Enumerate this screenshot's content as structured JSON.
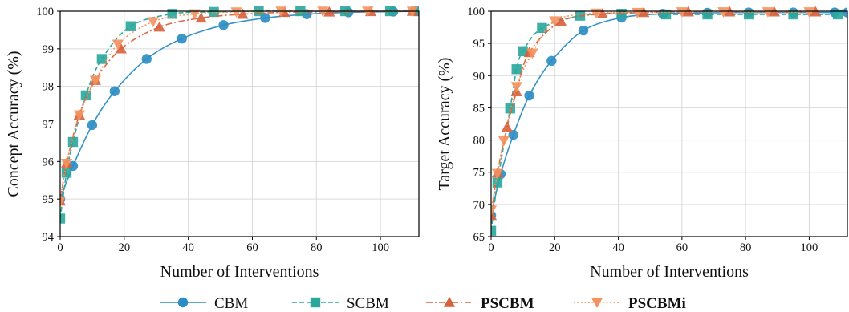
{
  "chart_data": [
    {
      "type": "line",
      "ylabel": "Concept Accuracy (%)",
      "xlabel": "Number of Interventions",
      "xlim": [
        0,
        112
      ],
      "ylim": [
        94,
        100
      ],
      "xticks": [
        "0",
        "20",
        "40",
        "60",
        "80",
        "100"
      ],
      "yticks": [
        "94",
        "95",
        "96",
        "97",
        "98",
        "99",
        "100"
      ],
      "grid": true,
      "series": [
        {
          "name": "CBM",
          "x": [
            0,
            4,
            10,
            17,
            27,
            38,
            51,
            64,
            77,
            90,
            104,
            112
          ],
          "y": [
            95.0,
            95.88,
            96.97,
            97.87,
            98.73,
            99.27,
            99.63,
            99.82,
            99.92,
            99.97,
            99.99,
            100.0
          ]
        },
        {
          "name": "SCBM",
          "x": [
            0,
            2,
            4,
            8,
            13,
            22,
            35,
            48,
            62,
            75,
            89,
            103,
            112
          ],
          "y": [
            94.48,
            95.7,
            96.52,
            97.76,
            98.73,
            99.6,
            99.93,
            99.98,
            100.0,
            100.0,
            100.0,
            100.0,
            100.0
          ]
        },
        {
          "name": "PSCBM",
          "x": [
            0,
            2,
            6,
            11,
            19,
            31,
            44,
            57,
            70,
            84,
            97,
            110
          ],
          "y": [
            94.95,
            95.95,
            97.24,
            98.16,
            99.0,
            99.58,
            99.82,
            99.92,
            99.97,
            99.98,
            99.99,
            100.0
          ]
        },
        {
          "name": "PSCBMi",
          "x": [
            0,
            2,
            6,
            11,
            18,
            29,
            42,
            55,
            69,
            82,
            96,
            110
          ],
          "y": [
            94.95,
            95.95,
            97.24,
            98.16,
            99.12,
            99.72,
            99.93,
            99.98,
            100.0,
            100.0,
            100.0,
            100.0
          ]
        }
      ]
    },
    {
      "type": "line",
      "ylabel": "Target Accuracy (%)",
      "xlabel": "Number of Interventions",
      "xlim": [
        0,
        112
      ],
      "ylim": [
        65,
        100
      ],
      "xticks": [
        "0",
        "20",
        "40",
        "60",
        "80",
        "100"
      ],
      "yticks": [
        "65",
        "70",
        "75",
        "80",
        "85",
        "90",
        "95",
        "100"
      ],
      "grid": true,
      "series": [
        {
          "name": "CBM",
          "x": [
            0,
            3,
            7,
            12,
            19,
            29,
            41,
            54,
            68,
            81,
            95,
            108,
            112
          ],
          "y": [
            68.3,
            74.7,
            80.8,
            86.9,
            92.3,
            97.0,
            99.0,
            99.6,
            99.75,
            99.8,
            99.8,
            99.8,
            99.8
          ]
        },
        {
          "name": "SCBM",
          "x": [
            0,
            2,
            6,
            8,
            10,
            16,
            28,
            41,
            55,
            68,
            81,
            95,
            109
          ],
          "y": [
            65.9,
            73.4,
            84.9,
            91.0,
            93.8,
            97.4,
            99.3,
            99.6,
            99.5,
            99.5,
            99.5,
            99.5,
            99.5
          ]
        },
        {
          "name": "PSCBM",
          "x": [
            0,
            2,
            5,
            8,
            12,
            22,
            35,
            48,
            62,
            75,
            89,
            102
          ],
          "y": [
            68.3,
            74.9,
            82.0,
            87.5,
            93.6,
            98.4,
            99.6,
            99.8,
            99.9,
            99.9,
            99.9,
            99.9
          ]
        },
        {
          "name": "PSCBMi",
          "x": [
            0,
            2,
            4,
            8,
            13,
            20,
            33,
            46,
            60,
            73,
            87,
            100
          ],
          "y": [
            69.1,
            74.8,
            79.9,
            88.3,
            93.5,
            98.5,
            99.7,
            99.8,
            99.9,
            99.9,
            99.9,
            99.9
          ]
        }
      ]
    }
  ],
  "legend": {
    "placement": "bottom-center",
    "entries": [
      {
        "name": "CBM",
        "bold": false,
        "color": "#2b8cc4",
        "marker": "circle",
        "dash": "solid"
      },
      {
        "name": "SCBM",
        "bold": false,
        "color": "#2aa79b",
        "marker": "square",
        "dash": "dashed"
      },
      {
        "name": "PSCBM",
        "bold": true,
        "color": "#d9603b",
        "marker": "triangle-up",
        "dash": "dashdot"
      },
      {
        "name": "PSCBMi",
        "bold": true,
        "color": "#f4935f",
        "marker": "triangle-down",
        "dash": "dotted"
      }
    ]
  }
}
